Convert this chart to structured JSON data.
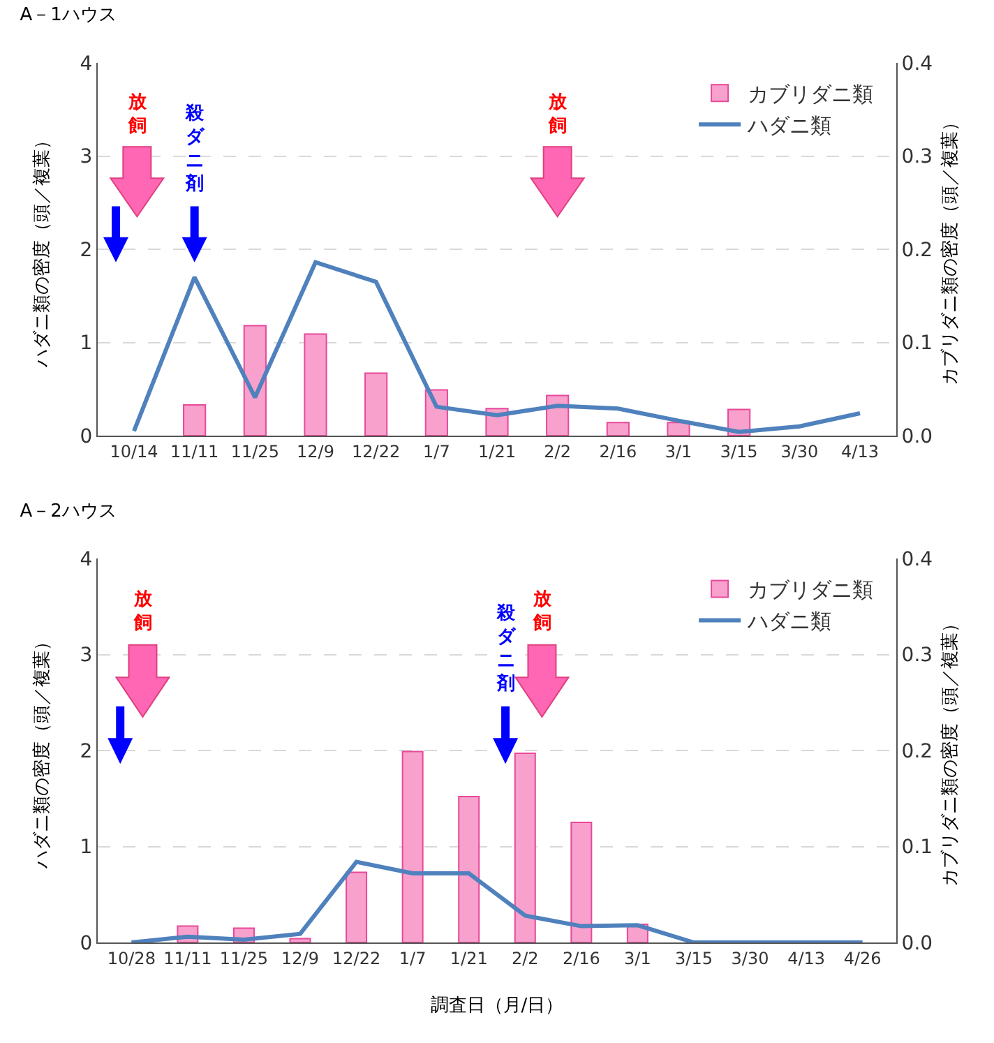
{
  "chart_data": [
    {
      "type": "bar",
      "title": "A－1ハウス",
      "ylabel": "ハダニ類の密度（頭／複葉）",
      "y2label": "カブリダニ類の密度（頭／複葉）",
      "categories": [
        "10/14",
        "11/11",
        "11/25",
        "12/9",
        "12/22",
        "1/7",
        "1/21",
        "2/2",
        "2/16",
        "3/1",
        "3/15",
        "3/30",
        "4/13"
      ],
      "series": [
        {
          "name": "カブリダニ類",
          "axis": "y2",
          "color": "#f7a1cc",
          "values": [
            null,
            0.033,
            0.118,
            0.109,
            0.067,
            0.049,
            0.029,
            0.043,
            0.014,
            0.014,
            0.028,
            null,
            null
          ]
        },
        {
          "name": "ハダニ類",
          "type": "line",
          "color": "#4f81bd",
          "values": [
            0.05,
            1.7,
            0.41,
            1.86,
            1.65,
            0.31,
            0.22,
            0.32,
            0.29,
            0.16,
            0.04,
            0.1,
            0.24
          ]
        }
      ],
      "ylim": [
        0,
        4
      ],
      "yticks": [
        0,
        1,
        2,
        3,
        4
      ],
      "y2lim": [
        0,
        0.4
      ],
      "y2ticks": [
        {
          "value": 0,
          "label": "0.0"
        },
        0.1,
        0.2,
        0.3,
        0.4
      ],
      "grid": "y",
      "legend": "top right",
      "annotations": [
        "放飼",
        "殺ダニ剤",
        "放飼"
      ]
    },
    {
      "type": "bar",
      "title": "A－2ハウス",
      "xlabel": "調査日（月/日）",
      "ylabel": "ハダニ類の密度（頭／複葉）",
      "y2label": "カブリダニ類の密度（頭／複葉）",
      "categories": [
        "10/28",
        "11/11",
        "11/25",
        "12/9",
        "12/22",
        "1/7",
        "1/21",
        "2/2",
        "2/16",
        "3/1",
        "3/15",
        "3/30",
        "4/13",
        "4/26"
      ],
      "series": [
        {
          "name": "カブリダニ類",
          "axis": "y2",
          "color": "#f7a1cc",
          "values": [
            null,
            0.017,
            0.015,
            0.004,
            0.073,
            0.199,
            0.152,
            0.197,
            0.125,
            0.019,
            null,
            null,
            null,
            null
          ]
        },
        {
          "name": "ハダニ類",
          "type": "line",
          "color": "#4f81bd",
          "values": [
            0,
            0.06,
            0.03,
            0.09,
            0.84,
            0.72,
            0.72,
            0.28,
            0.17,
            0.18,
            0,
            0,
            0,
            0
          ]
        }
      ],
      "ylim": [
        0,
        4
      ],
      "yticks": [
        0,
        1,
        2,
        3,
        4
      ],
      "y2lim": [
        0,
        0.4
      ],
      "y2ticks": [
        {
          "value": 0,
          "label": "0.0"
        },
        0.1,
        0.2,
        0.3,
        0.4
      ],
      "grid": "y",
      "legend": "top right",
      "annotations": [
        "放飼",
        "殺ダニ剤",
        "放飼"
      ]
    }
  ]
}
